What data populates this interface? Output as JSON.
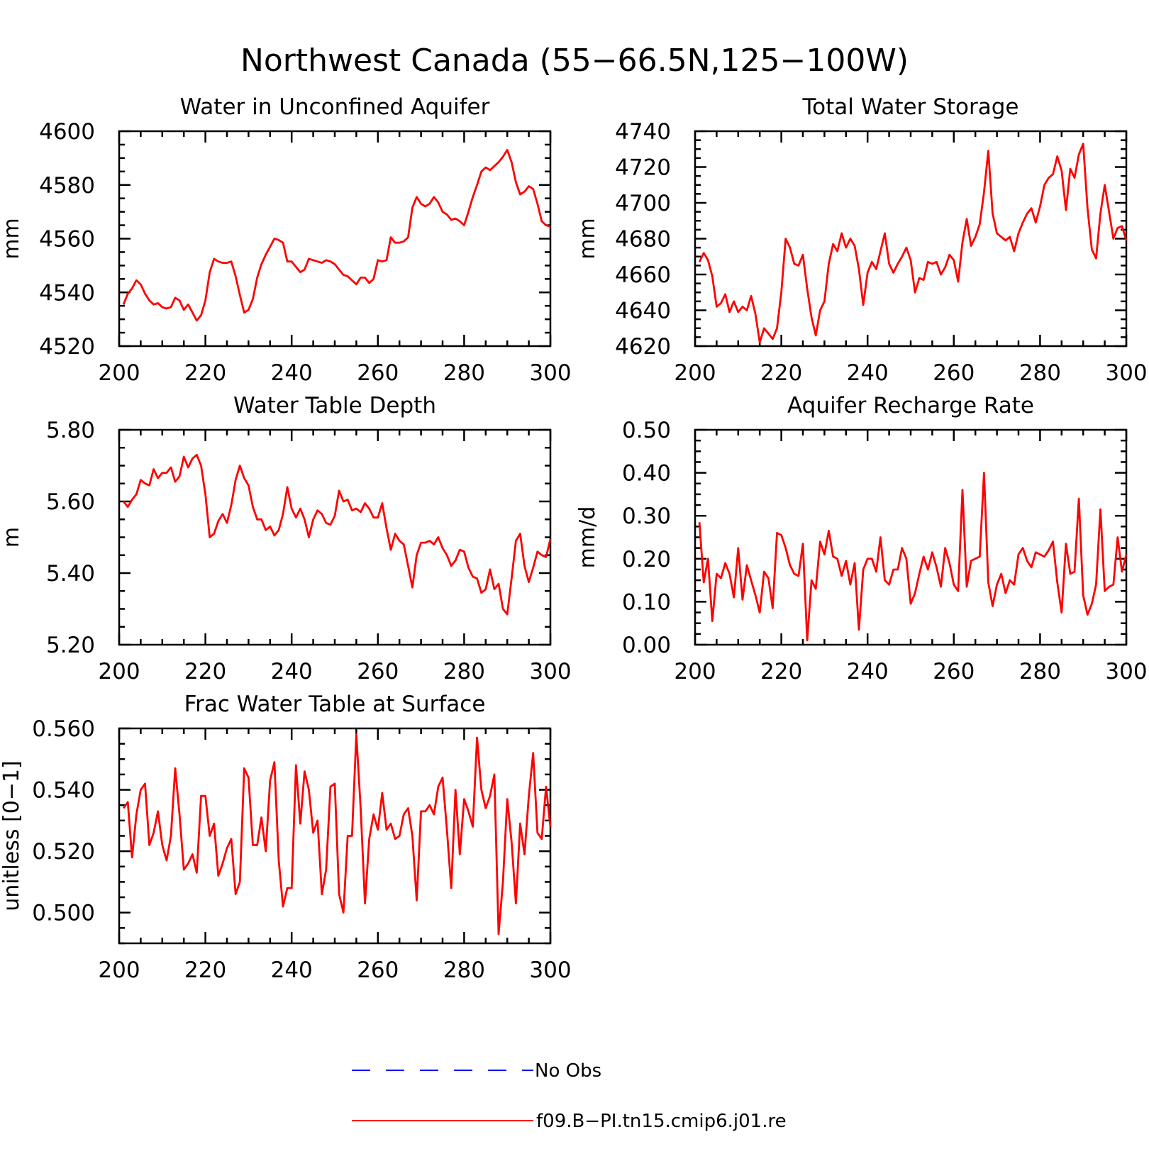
{
  "title": "Northwest Canada (55−66.5N,125−100W)",
  "legend": [
    {
      "label": "No Obs",
      "color": "#0000ff",
      "style": "dashed"
    },
    {
      "label": "f09.B−PI.tn15.cmip6.j01.re",
      "color": "#ff0000",
      "style": "solid"
    }
  ],
  "chart_data": [
    {
      "type": "line",
      "title": "Water in Unconfined Aquifer",
      "ylabel": "mm",
      "xlim": [
        200,
        300
      ],
      "ylim": [
        4520,
        4600
      ],
      "xticks": [
        200,
        220,
        240,
        260,
        280,
        300
      ],
      "yticks": [
        4520,
        4540,
        4560,
        4580,
        4600
      ],
      "ytick_labels": [
        "4520",
        "4540",
        "4560",
        "4580",
        "4600"
      ],
      "x_start": 201,
      "series": [
        {
          "color": "#ff0000",
          "values": [
            4535.5,
            4539.5,
            4541.5,
            4544.5,
            4543,
            4539.5,
            4537,
            4535.5,
            4536,
            4534.5,
            4534,
            4534.5,
            4538,
            4537,
            4533.5,
            4535.5,
            4532.5,
            4529.5,
            4531.5,
            4537,
            4547.5,
            4552.5,
            4551.5,
            4551,
            4551,
            4551.5,
            4546,
            4539,
            4532.5,
            4533.5,
            4537.5,
            4545.5,
            4550.5,
            4554,
            4557,
            4560,
            4559.5,
            4558.5,
            4551.5,
            4551.5,
            4549.5,
            4547.5,
            4548.5,
            4552.5,
            4552,
            4551.5,
            4551,
            4552,
            4551.5,
            4550.5,
            4548.5,
            4546.5,
            4546,
            4544.5,
            4543,
            4545.5,
            4545.5,
            4543.5,
            4545,
            4552,
            4551.5,
            4552,
            4560.5,
            4558.5,
            4558.5,
            4559,
            4560.5,
            4571.5,
            4575.5,
            4573,
            4572,
            4573,
            4575.5,
            4573.5,
            4570,
            4569,
            4567,
            4567.5,
            4566.5,
            4565,
            4570,
            4575.5,
            4580,
            4585,
            4586.5,
            4585.5,
            4587,
            4588.5,
            4590.5,
            4593,
            4588.5,
            4581,
            4576.5,
            4577.5,
            4579.5,
            4578.5,
            4573,
            4566.5,
            4565,
            4564.5
          ]
        }
      ]
    },
    {
      "type": "line",
      "title": "Total Water Storage",
      "ylabel": "mm",
      "xlim": [
        200,
        300
      ],
      "ylim": [
        4620,
        4740
      ],
      "xticks": [
        200,
        220,
        240,
        260,
        280,
        300
      ],
      "yticks": [
        4620,
        4640,
        4660,
        4680,
        4700,
        4720,
        4740
      ],
      "ytick_labels": [
        "4620",
        "4640",
        "4660",
        "4680",
        "4700",
        "4720",
        "4740"
      ],
      "x_start": 201,
      "series": [
        {
          "color": "#ff0000",
          "values": [
            4667,
            4672,
            4668,
            4659,
            4642,
            4644,
            4649,
            4639,
            4645,
            4639,
            4642,
            4640,
            4648,
            4638,
            4622,
            4630,
            4627,
            4624,
            4630,
            4650,
            4680,
            4675,
            4666,
            4665,
            4671,
            4652,
            4636,
            4626,
            4640,
            4645,
            4666,
            4677,
            4673,
            4683,
            4675,
            4680,
            4676,
            4663,
            4643,
            4661,
            4667,
            4663,
            4673,
            4683,
            4666,
            4661,
            4666,
            4670,
            4675,
            4668,
            4650,
            4658,
            4657,
            4667,
            4666,
            4667,
            4660,
            4664,
            4671,
            4668,
            4656,
            4678,
            4691,
            4676,
            4681,
            4688,
            4706,
            4729,
            4694,
            4683,
            4681,
            4679,
            4681,
            4673,
            4683,
            4689,
            4694,
            4697,
            4689,
            4698,
            4710,
            4714,
            4716,
            4726,
            4718,
            4696,
            4719,
            4714,
            4727,
            4733,
            4697,
            4674,
            4669,
            4694,
            4710,
            4695,
            4680,
            4686,
            4687,
            4679
          ]
        }
      ]
    },
    {
      "type": "line",
      "title": "Water Table Depth",
      "ylabel": "m",
      "xlim": [
        200,
        300
      ],
      "ylim": [
        5.2,
        5.8
      ],
      "xticks": [
        200,
        220,
        240,
        260,
        280,
        300
      ],
      "yticks": [
        5.2,
        5.4,
        5.6,
        5.8
      ],
      "ytick_labels": [
        "5.20",
        "5.40",
        "5.60",
        "5.80"
      ],
      "x_start": 201,
      "series": [
        {
          "color": "#ff0000",
          "values": [
            5.6,
            5.585,
            5.605,
            5.62,
            5.66,
            5.65,
            5.645,
            5.69,
            5.665,
            5.68,
            5.68,
            5.695,
            5.655,
            5.67,
            5.725,
            5.695,
            5.72,
            5.73,
            5.7,
            5.62,
            5.5,
            5.51,
            5.545,
            5.565,
            5.54,
            5.59,
            5.66,
            5.7,
            5.665,
            5.645,
            5.585,
            5.55,
            5.55,
            5.52,
            5.53,
            5.505,
            5.52,
            5.565,
            5.64,
            5.58,
            5.555,
            5.58,
            5.55,
            5.5,
            5.55,
            5.575,
            5.565,
            5.54,
            5.535,
            5.56,
            5.63,
            5.6,
            5.605,
            5.575,
            5.58,
            5.57,
            5.595,
            5.58,
            5.555,
            5.555,
            5.595,
            5.525,
            5.465,
            5.51,
            5.49,
            5.48,
            5.42,
            5.36,
            5.45,
            5.485,
            5.485,
            5.49,
            5.48,
            5.5,
            5.47,
            5.45,
            5.42,
            5.435,
            5.465,
            5.46,
            5.415,
            5.39,
            5.385,
            5.345,
            5.355,
            5.41,
            5.355,
            5.37,
            5.3,
            5.285,
            5.385,
            5.49,
            5.51,
            5.42,
            5.375,
            5.415,
            5.46,
            5.45,
            5.445,
            5.495
          ]
        }
      ]
    },
    {
      "type": "line",
      "title": "Aquifer Recharge Rate",
      "ylabel": "mm/d",
      "xlim": [
        200,
        300
      ],
      "ylim": [
        0,
        0.5
      ],
      "xticks": [
        200,
        220,
        240,
        260,
        280,
        300
      ],
      "yticks": [
        0,
        0.1,
        0.2,
        0.3,
        0.4,
        0.5
      ],
      "ytick_labels": [
        "0.00",
        "0.10",
        "0.20",
        "0.30",
        "0.40",
        "0.50"
      ],
      "x_start": 201,
      "series": [
        {
          "color": "#ff0000",
          "values": [
            0.285,
            0.145,
            0.2,
            0.055,
            0.165,
            0.155,
            0.19,
            0.165,
            0.11,
            0.225,
            0.105,
            0.185,
            0.15,
            0.115,
            0.075,
            0.17,
            0.155,
            0.085,
            0.26,
            0.255,
            0.225,
            0.185,
            0.165,
            0.16,
            0.235,
            0.01,
            0.15,
            0.13,
            0.24,
            0.21,
            0.265,
            0.205,
            0.2,
            0.16,
            0.195,
            0.14,
            0.19,
            0.035,
            0.175,
            0.2,
            0.2,
            0.17,
            0.25,
            0.15,
            0.14,
            0.175,
            0.175,
            0.225,
            0.2,
            0.095,
            0.12,
            0.165,
            0.205,
            0.175,
            0.215,
            0.18,
            0.135,
            0.225,
            0.19,
            0.14,
            0.125,
            0.36,
            0.135,
            0.195,
            0.2,
            0.205,
            0.4,
            0.145,
            0.09,
            0.14,
            0.165,
            0.12,
            0.15,
            0.14,
            0.21,
            0.225,
            0.195,
            0.18,
            0.215,
            0.21,
            0.205,
            0.22,
            0.24,
            0.145,
            0.075,
            0.235,
            0.165,
            0.17,
            0.34,
            0.115,
            0.07,
            0.095,
            0.14,
            0.315,
            0.125,
            0.135,
            0.14,
            0.25,
            0.17,
            0.21
          ]
        }
      ]
    },
    {
      "type": "line",
      "title": "Frac Water Table at Surface",
      "ylabel": "unitless [0−1]",
      "xlim": [
        200,
        300
      ],
      "ylim": [
        0.49,
        0.56
      ],
      "xticks": [
        200,
        220,
        240,
        260,
        280,
        300
      ],
      "yticks": [
        0.5,
        0.52,
        0.54,
        0.56
      ],
      "ytick_labels": [
        "0.500",
        "0.520",
        "0.540",
        "0.560"
      ],
      "x_start": 201,
      "series": [
        {
          "color": "#ff0000",
          "values": [
            0.534,
            0.536,
            0.518,
            0.532,
            0.54,
            0.542,
            0.522,
            0.526,
            0.533,
            0.522,
            0.517,
            0.525,
            0.547,
            0.532,
            0.514,
            0.516,
            0.519,
            0.513,
            0.538,
            0.538,
            0.525,
            0.529,
            0.512,
            0.516,
            0.521,
            0.524,
            0.506,
            0.51,
            0.547,
            0.544,
            0.522,
            0.522,
            0.531,
            0.52,
            0.543,
            0.549,
            0.517,
            0.502,
            0.508,
            0.508,
            0.548,
            0.529,
            0.546,
            0.54,
            0.526,
            0.53,
            0.506,
            0.514,
            0.541,
            0.542,
            0.506,
            0.5,
            0.525,
            0.525,
            0.558,
            0.534,
            0.503,
            0.524,
            0.532,
            0.527,
            0.539,
            0.527,
            0.529,
            0.524,
            0.525,
            0.532,
            0.534,
            0.525,
            0.504,
            0.533,
            0.533,
            0.535,
            0.532,
            0.541,
            0.544,
            0.527,
            0.508,
            0.54,
            0.519,
            0.537,
            0.533,
            0.528,
            0.557,
            0.54,
            0.534,
            0.538,
            0.545,
            0.493,
            0.51,
            0.537,
            0.523,
            0.503,
            0.529,
            0.519,
            0.538,
            0.552,
            0.526,
            0.524,
            0.541,
            0.528
          ]
        }
      ]
    }
  ]
}
